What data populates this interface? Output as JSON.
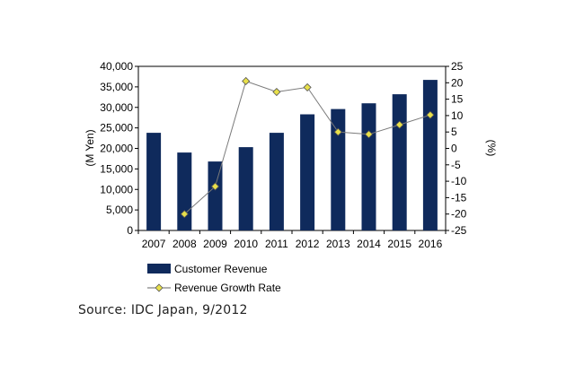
{
  "chart_data": {
    "type": "bar",
    "categories": [
      "2007",
      "2008",
      "2009",
      "2010",
      "2011",
      "2012",
      "2013",
      "2014",
      "2015",
      "2016"
    ],
    "series": [
      {
        "name": "Customer Revenue",
        "kind": "bar",
        "axis": "left",
        "color": "#0f2a5c",
        "values": [
          23800,
          19000,
          16800,
          20300,
          23800,
          28300,
          29600,
          31000,
          33200,
          36700
        ]
      },
      {
        "name": "Revenue Growth Rate",
        "kind": "line",
        "axis": "right",
        "color": "#e8e04a",
        "values": [
          null,
          -20,
          -11.6,
          20.5,
          17.2,
          18.6,
          5,
          4.3,
          7.2,
          10.2
        ]
      }
    ],
    "ylabel_left": "(M Yen)",
    "ylabel_right": "(%)",
    "ylim_left": [
      0,
      40000
    ],
    "ylim_right": [
      -25,
      25
    ],
    "yticks_left": [
      "0",
      "5,000",
      "10,000",
      "15,000",
      "20,000",
      "25,000",
      "30,000",
      "35,000",
      "40,000"
    ],
    "yticks_right": [
      "-25",
      "-20",
      "-15",
      "-10",
      "-5",
      "0",
      "5",
      "10",
      "15",
      "20",
      "25"
    ],
    "legend": [
      "Customer Revenue",
      "Revenue Growth Rate"
    ],
    "legend_position": "bottom-left",
    "grid": false
  },
  "source": "Source: IDC Japan, 9/2012"
}
